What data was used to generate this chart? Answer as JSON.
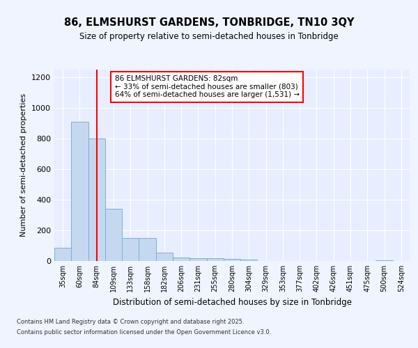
{
  "title1": "86, ELMSHURST GARDENS, TONBRIDGE, TN10 3QY",
  "title2": "Size of property relative to semi-detached houses in Tonbridge",
  "xlabel": "Distribution of semi-detached houses by size in Tonbridge",
  "ylabel": "Number of semi-detached properties",
  "categories": [
    "35sqm",
    "60sqm",
    "84sqm",
    "109sqm",
    "133sqm",
    "158sqm",
    "182sqm",
    "206sqm",
    "231sqm",
    "255sqm",
    "280sqm",
    "304sqm",
    "329sqm",
    "353sqm",
    "377sqm",
    "402sqm",
    "426sqm",
    "451sqm",
    "475sqm",
    "500sqm",
    "524sqm"
  ],
  "values": [
    85,
    910,
    800,
    340,
    150,
    150,
    55,
    25,
    20,
    20,
    15,
    10,
    0,
    0,
    0,
    0,
    0,
    0,
    0,
    5,
    0
  ],
  "bar_color": "#c5d8f0",
  "bar_edge_color": "#7aafd4",
  "vline_x": 2,
  "vline_color": "red",
  "annotation_title": "86 ELMSHURST GARDENS: 82sqm",
  "annotation_line2": "← 33% of semi-detached houses are smaller (803)",
  "annotation_line3": "64% of semi-detached houses are larger (1,531) →",
  "annotation_box_color": "white",
  "annotation_box_edge": "red",
  "ylim": [
    0,
    1250
  ],
  "yticks": [
    0,
    200,
    400,
    600,
    800,
    1000,
    1200
  ],
  "footer1": "Contains HM Land Registry data © Crown copyright and database right 2025.",
  "footer2": "Contains public sector information licensed under the Open Government Licence v3.0.",
  "bg_color": "#f0f4ff",
  "plot_bg_color": "#e8eeff"
}
